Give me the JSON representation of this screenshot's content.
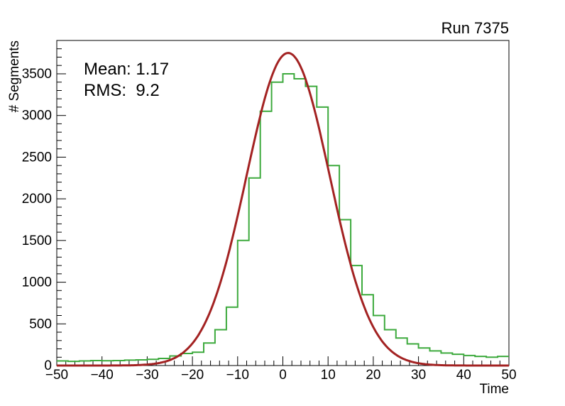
{
  "title": "Run 7375",
  "annotations": {
    "mean": "Mean: 1.17",
    "rms": "RMS:  9.2"
  },
  "axes": {
    "x": {
      "title": "Time",
      "min": -50,
      "max": 50,
      "major_ticks": [
        -50,
        -40,
        -30,
        -20,
        -10,
        0,
        10,
        20,
        30,
        40,
        50
      ],
      "minor_step": 2
    },
    "y": {
      "title": "# Segments",
      "min": 0,
      "max": 3900,
      "major_ticks": [
        0,
        500,
        1000,
        1500,
        2000,
        2500,
        3000,
        3500
      ],
      "minor_step": 100
    }
  },
  "colors": {
    "histogram": "#3daa3d",
    "fit": "#a32222",
    "axis": "#000000",
    "text": "#000000",
    "background": "#ffffff"
  },
  "chart_data": {
    "type": "bar",
    "style": "step-histogram-with-gaussian-fit",
    "title": "Run 7375",
    "xlabel": "Time",
    "ylabel": "# Segments",
    "xlim": [
      -50,
      50
    ],
    "ylim": [
      0,
      3900
    ],
    "grid": false,
    "legend": "none",
    "histogram": {
      "bin_start": -50,
      "bin_width": 2.5,
      "counts": [
        55,
        50,
        55,
        60,
        58,
        60,
        65,
        68,
        75,
        85,
        115,
        145,
        160,
        270,
        430,
        700,
        1500,
        2250,
        3050,
        3400,
        3500,
        3440,
        3350,
        3100,
        2400,
        1750,
        1200,
        850,
        600,
        430,
        330,
        260,
        210,
        175,
        150,
        135,
        120,
        110,
        100,
        110
      ]
    },
    "fit": {
      "model": "gaussian",
      "amplitude": 3750,
      "mean": 1.17,
      "sigma": 9.2
    },
    "stats": {
      "mean": 1.17,
      "rms": 9.2
    }
  }
}
